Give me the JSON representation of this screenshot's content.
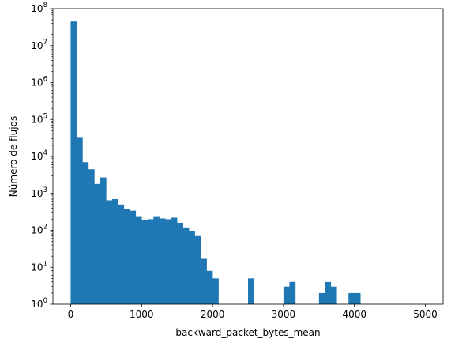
{
  "chart_data": {
    "type": "bar",
    "title": "",
    "xlabel": "backward_packet_bytes_mean",
    "ylabel": "Número de flujos",
    "yscale": "log",
    "xlim": [
      -250,
      5250
    ],
    "ylim": [
      1,
      100000000
    ],
    "bin_width": 83.33,
    "color": "#1f77b4",
    "grid": false,
    "x_ticks": [
      0,
      1000,
      2000,
      3000,
      4000,
      5000
    ],
    "x_tick_labels": [
      "0",
      "1000",
      "2000",
      "3000",
      "4000",
      "5000"
    ],
    "y_ticks": [
      1,
      10,
      100,
      1000,
      10000,
      100000,
      1000000,
      10000000,
      100000000
    ],
    "y_tick_labels": [
      {
        "base": "10",
        "exp": "0"
      },
      {
        "base": "10",
        "exp": "1"
      },
      {
        "base": "10",
        "exp": "2"
      },
      {
        "base": "10",
        "exp": "3"
      },
      {
        "base": "10",
        "exp": "4"
      },
      {
        "base": "10",
        "exp": "5"
      },
      {
        "base": "10",
        "exp": "6"
      },
      {
        "base": "10",
        "exp": "7"
      },
      {
        "base": "10",
        "exp": "8"
      }
    ],
    "bins": [
      {
        "x0": 0,
        "value": 45000000
      },
      {
        "x0": 83.33,
        "value": 32000
      },
      {
        "x0": 166.67,
        "value": 7000
      },
      {
        "x0": 250,
        "value": 4500
      },
      {
        "x0": 333.33,
        "value": 1800
      },
      {
        "x0": 416.67,
        "value": 2700
      },
      {
        "x0": 500,
        "value": 650
      },
      {
        "x0": 583.33,
        "value": 700
      },
      {
        "x0": 666.67,
        "value": 500
      },
      {
        "x0": 750,
        "value": 370
      },
      {
        "x0": 833.33,
        "value": 340
      },
      {
        "x0": 916.67,
        "value": 230
      },
      {
        "x0": 1000,
        "value": 190
      },
      {
        "x0": 1083.33,
        "value": 200
      },
      {
        "x0": 1166.67,
        "value": 230
      },
      {
        "x0": 1250,
        "value": 210
      },
      {
        "x0": 1333.33,
        "value": 200
      },
      {
        "x0": 1416.67,
        "value": 220
      },
      {
        "x0": 1500,
        "value": 160
      },
      {
        "x0": 1583.33,
        "value": 120
      },
      {
        "x0": 1666.67,
        "value": 95
      },
      {
        "x0": 1750,
        "value": 70
      },
      {
        "x0": 1833.33,
        "value": 17
      },
      {
        "x0": 1916.67,
        "value": 8
      },
      {
        "x0": 2000,
        "value": 5
      },
      {
        "x0": 2500,
        "value": 5
      },
      {
        "x0": 3000,
        "value": 3
      },
      {
        "x0": 3083.33,
        "value": 4
      },
      {
        "x0": 3500,
        "value": 2
      },
      {
        "x0": 3583.33,
        "value": 4
      },
      {
        "x0": 3666.67,
        "value": 3
      },
      {
        "x0": 3916.67,
        "value": 2
      },
      {
        "x0": 4000,
        "value": 2
      }
    ]
  }
}
